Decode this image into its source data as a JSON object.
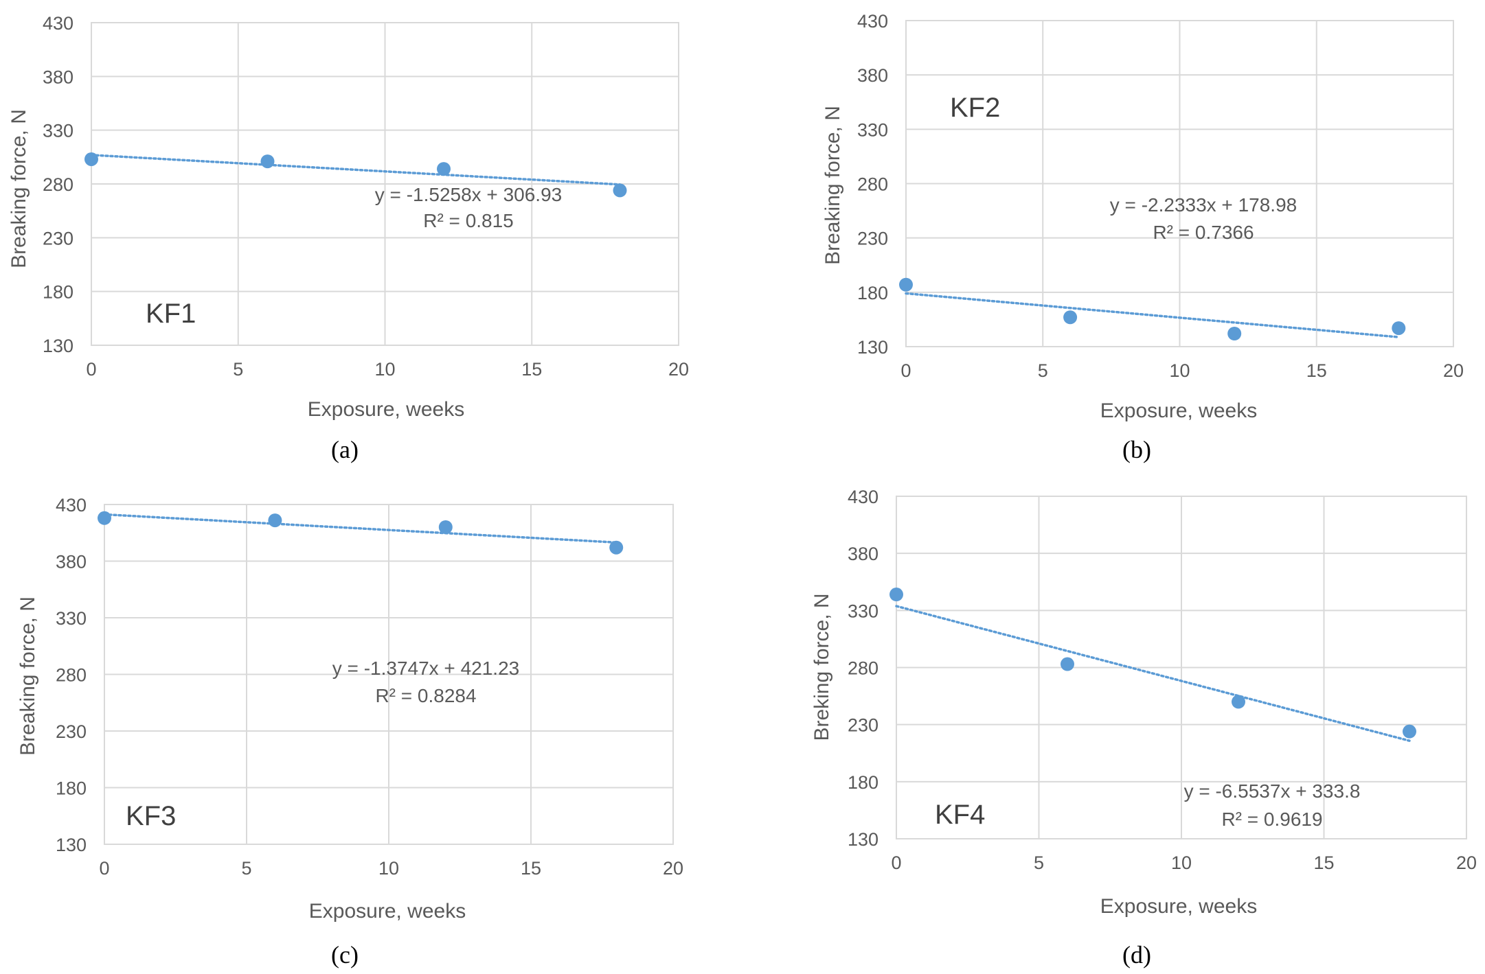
{
  "chart_data": [
    {
      "type": "scatter",
      "panel": "a",
      "caption": "(a)",
      "label": "KF1",
      "xlabel": "Exposure, weeks",
      "ylabel": "Breaking force, N",
      "xlim": [
        0,
        20
      ],
      "ylim": [
        130,
        430
      ],
      "xticks": [
        0,
        5,
        10,
        15,
        20
      ],
      "yticks": [
        130,
        180,
        230,
        280,
        330,
        380,
        430
      ],
      "x": [
        0,
        6,
        12,
        18
      ],
      "y": [
        303,
        301,
        294,
        274
      ],
      "trendline": {
        "slope": -1.5258,
        "intercept": 306.93
      },
      "equation": "y = -1.5258x + 306.93",
      "r2": "R² = 0.815",
      "marker_color": "#5b9bd5"
    },
    {
      "type": "scatter",
      "panel": "b",
      "caption": "(b)",
      "label": "KF2",
      "xlabel": "Exposure, weeks",
      "ylabel": "Breaking force, N",
      "xlim": [
        0,
        20
      ],
      "ylim": [
        130,
        430
      ],
      "xticks": [
        0,
        5,
        10,
        15,
        20
      ],
      "yticks": [
        130,
        180,
        230,
        280,
        330,
        380,
        430
      ],
      "x": [
        0,
        6,
        12,
        18
      ],
      "y": [
        187,
        157,
        142,
        147
      ],
      "trendline": {
        "slope": -2.2333,
        "intercept": 178.98
      },
      "equation": "y = -2.2333x + 178.98",
      "r2": "R² = 0.7366",
      "marker_color": "#5b9bd5"
    },
    {
      "type": "scatter",
      "panel": "c",
      "caption": "(c)",
      "label": "KF3",
      "xlabel": "Exposure, weeks",
      "ylabel": "Breaking force, N",
      "xlim": [
        0,
        20
      ],
      "ylim": [
        130,
        430
      ],
      "xticks": [
        0,
        5,
        10,
        15,
        20
      ],
      "yticks": [
        130,
        180,
        230,
        280,
        330,
        380,
        430
      ],
      "x": [
        0,
        6,
        12,
        18
      ],
      "y": [
        418,
        416,
        410,
        392
      ],
      "trendline": {
        "slope": -1.3747,
        "intercept": 421.23
      },
      "equation": "y = -1.3747x + 421.23",
      "r2": "R² = 0.8284",
      "marker_color": "#5b9bd5"
    },
    {
      "type": "scatter",
      "panel": "d",
      "caption": "(d)",
      "label": "KF4",
      "xlabel": "Exposure, weeks",
      "ylabel": "Breking force, N",
      "xlim": [
        0,
        20
      ],
      "ylim": [
        130,
        430
      ],
      "xticks": [
        0,
        5,
        10,
        15,
        20
      ],
      "yticks": [
        130,
        180,
        230,
        280,
        330,
        380,
        430
      ],
      "x": [
        0,
        6,
        12,
        18
      ],
      "y": [
        344,
        283,
        250,
        224
      ],
      "trendline": {
        "slope": -6.5537,
        "intercept": 333.8
      },
      "equation": "y = -6.5537x + 333.8",
      "r2": "R² = 0.9619",
      "marker_color": "#5b9bd5"
    }
  ]
}
